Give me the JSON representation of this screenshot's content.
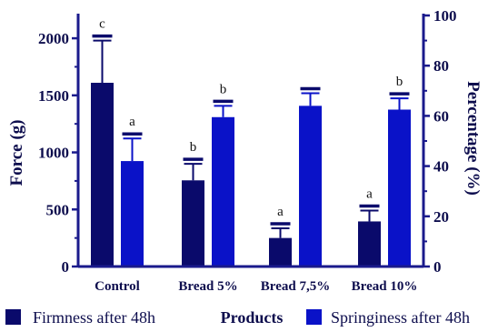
{
  "colors": {
    "firmness": "#0a0a6b",
    "springiness": "#0a12c8",
    "axis": "#1a1a8c",
    "text": "#0d0d4d",
    "letters": "#111111"
  },
  "chart_data": {
    "type": "bar",
    "categories": [
      "Control",
      "Bread 5%",
      "Bread 7,5%",
      "Bread 10%"
    ],
    "xlabel": "Products",
    "left_axis": {
      "label": "Force (g)",
      "ylim": [
        0,
        2200
      ],
      "ticks": [
        0,
        500,
        1000,
        1500,
        2000
      ]
    },
    "right_axis": {
      "label": "Percentage (%)",
      "ylim": [
        0,
        100
      ],
      "ticks": [
        0,
        20,
        40,
        60,
        80,
        100
      ]
    },
    "series": [
      {
        "name": "Firmness after 48h",
        "axis": "left",
        "values": [
          1610,
          755,
          250,
          395
        ],
        "errors": [
          370,
          145,
          85,
          95
        ],
        "letters": [
          "c",
          "b",
          "a",
          "a"
        ]
      },
      {
        "name": "Springiness after 48h",
        "axis": "right",
        "values": [
          42,
          59.5,
          64,
          62.5
        ],
        "errors": [
          9,
          4.5,
          5,
          4.5
        ],
        "letters": [
          "a",
          "b",
          "",
          "b"
        ]
      }
    ],
    "legend_placement": "bottom"
  }
}
